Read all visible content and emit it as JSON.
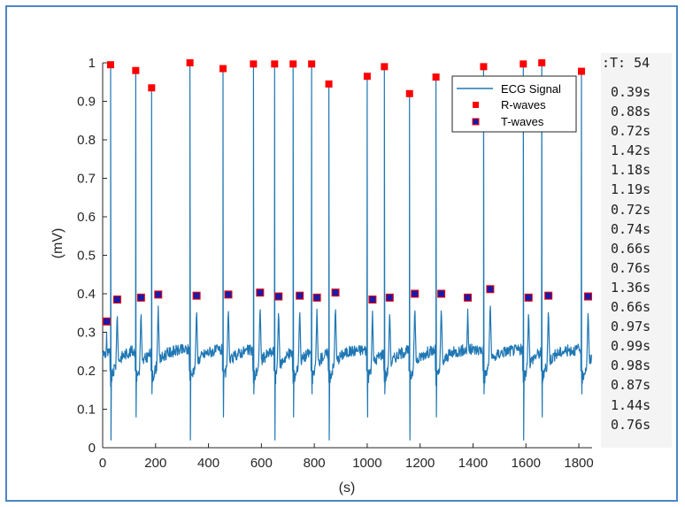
{
  "chart_data": {
    "type": "line",
    "title": "",
    "xlabel": "(s)",
    "ylabel": "(mV)",
    "xlim": [
      0,
      1850
    ],
    "ylim": [
      0,
      1
    ],
    "xticks": [
      0,
      200,
      400,
      600,
      800,
      1000,
      1200,
      1400,
      1600,
      1800
    ],
    "yticks": [
      0,
      0.1,
      0.2,
      0.3,
      0.4,
      0.5,
      0.6,
      0.7,
      0.8,
      0.9,
      1
    ],
    "grid": false,
    "legend": {
      "position": "top-right",
      "entries": [
        "ECG Signal",
        "R-waves",
        "T-waves"
      ]
    },
    "colors": {
      "signal": "#1f77b4",
      "r_marker": "#ff0000",
      "t_marker_fill": "#1a1aa8",
      "t_marker_edge": "#ff0000"
    },
    "series": [
      {
        "name": "R-waves",
        "x": [
          30,
          125,
          185,
          330,
          455,
          570,
          650,
          720,
          790,
          855,
          1000,
          1065,
          1160,
          1260,
          1440,
          1590,
          1660,
          1810
        ],
        "y": [
          0.995,
          0.98,
          0.935,
          1.0,
          0.985,
          0.997,
          0.997,
          0.997,
          0.997,
          0.945,
          0.965,
          0.99,
          0.92,
          0.963,
          0.99,
          0.997,
          1.0,
          0.978
        ]
      },
      {
        "name": "T-waves",
        "x": [
          15,
          55,
          145,
          210,
          355,
          475,
          595,
          665,
          745,
          810,
          880,
          1020,
          1085,
          1180,
          1280,
          1380,
          1465,
          1610,
          1685,
          1835
        ],
        "y": [
          0.328,
          0.385,
          0.39,
          0.398,
          0.395,
          0.398,
          0.403,
          0.393,
          0.395,
          0.39,
          0.403,
          0.385,
          0.39,
          0.4,
          0.4,
          0.39,
          0.412,
          0.39,
          0.395,
          0.393
        ]
      }
    ]
  },
  "side_panel": {
    "header": ":T: 54",
    "intervals": [
      "0.39s",
      "0.88s",
      "0.72s",
      "1.42s",
      "1.18s",
      "1.19s",
      "0.72s",
      "0.74s",
      "0.66s",
      "0.76s",
      "1.36s",
      "0.66s",
      "0.97s",
      "0.99s",
      "0.98s",
      "0.87s",
      "1.44s",
      "0.76s"
    ]
  }
}
